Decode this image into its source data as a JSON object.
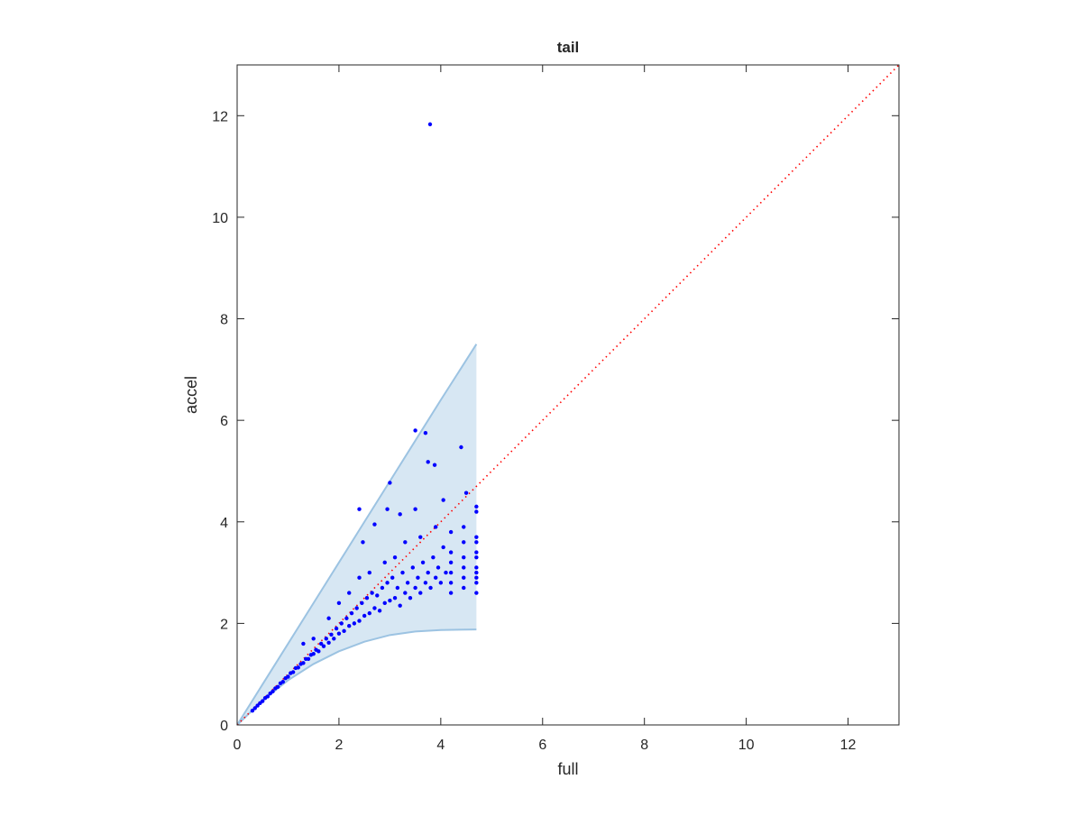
{
  "chart_data": {
    "type": "scatter",
    "title": "tail",
    "xlabel": "full",
    "ylabel": "accel",
    "xlim": [
      0,
      13
    ],
    "ylim": [
      0,
      13
    ],
    "xticks": [
      0,
      2,
      4,
      6,
      8,
      10,
      12
    ],
    "yticks": [
      0,
      2,
      4,
      6,
      8,
      10,
      12
    ],
    "band": {
      "color": "#9cc3e2",
      "x": [
        0,
        0.5,
        1,
        1.5,
        2,
        2.5,
        3,
        3.5,
        4,
        4.7
      ],
      "upper": [
        0,
        0.8,
        1.6,
        2.4,
        3.2,
        4.0,
        4.8,
        5.6,
        6.4,
        7.5
      ],
      "lower": [
        0,
        0.48,
        0.88,
        1.2,
        1.45,
        1.64,
        1.77,
        1.84,
        1.87,
        1.88
      ]
    },
    "reference_line": {
      "color": "#ff0000",
      "x": [
        0,
        13
      ],
      "y": [
        0,
        13
      ]
    },
    "points": {
      "color": "#0000ff",
      "x": [
        3.79,
        3.5,
        3.7,
        4.4,
        3.75,
        3.88,
        3.0,
        4.5,
        4.05,
        2.4,
        2.95,
        3.5,
        3.2,
        2.7,
        2.47,
        4.7,
        4.7,
        4.7,
        4.7,
        4.7,
        4.7,
        4.7,
        4.7,
        4.7,
        4.7,
        4.7,
        4.45,
        4.45,
        4.45,
        4.45,
        4.45,
        4.45,
        4.2,
        4.2,
        4.2,
        4.2,
        4.2,
        4.2,
        0.3,
        0.35,
        0.4,
        0.45,
        0.5,
        0.55,
        0.6,
        0.65,
        0.7,
        0.75,
        0.8,
        0.85,
        0.9,
        0.95,
        1.0,
        1.05,
        1.1,
        1.15,
        1.2,
        1.25,
        1.3,
        1.35,
        1.4,
        1.45,
        1.5,
        1.55,
        1.6,
        1.65,
        1.7,
        1.75,
        1.8,
        1.85,
        1.9,
        1.95,
        2.0,
        2.05,
        2.1,
        2.15,
        2.2,
        2.25,
        2.3,
        2.35,
        2.4,
        2.45,
        2.5,
        2.55,
        2.6,
        2.65,
        2.7,
        2.75,
        2.8,
        2.85,
        2.9,
        2.95,
        3.0,
        3.05,
        3.1,
        3.15,
        3.2,
        3.25,
        3.3,
        3.35,
        3.4,
        3.45,
        3.5,
        3.55,
        3.6,
        3.65,
        3.7,
        3.75,
        3.8,
        3.85,
        3.9,
        3.95,
        4.0,
        4.05,
        4.1,
        1.3,
        1.5,
        1.8,
        2.0,
        2.2,
        2.4,
        2.6,
        2.9,
        3.1,
        3.3,
        3.6,
        3.9
      ],
      "y": [
        11.83,
        5.8,
        5.75,
        5.47,
        5.18,
        5.12,
        4.77,
        4.57,
        4.43,
        4.25,
        4.25,
        4.25,
        4.15,
        3.95,
        3.6,
        4.3,
        4.2,
        3.7,
        3.6,
        3.4,
        3.3,
        3.1,
        3.0,
        2.9,
        2.8,
        2.6,
        3.9,
        3.6,
        3.3,
        3.1,
        2.9,
        2.7,
        3.8,
        3.4,
        3.2,
        3.0,
        2.8,
        2.6,
        0.28,
        0.33,
        0.38,
        0.43,
        0.47,
        0.53,
        0.56,
        0.62,
        0.66,
        0.72,
        0.75,
        0.82,
        0.85,
        0.92,
        0.95,
        1.02,
        1.04,
        1.12,
        1.13,
        1.2,
        1.22,
        1.3,
        1.3,
        1.38,
        1.4,
        1.48,
        1.45,
        1.6,
        1.55,
        1.7,
        1.62,
        1.78,
        1.7,
        1.9,
        1.8,
        2.0,
        1.85,
        2.1,
        1.95,
        2.2,
        2.0,
        2.3,
        2.05,
        2.4,
        2.15,
        2.5,
        2.2,
        2.6,
        2.3,
        2.55,
        2.25,
        2.7,
        2.4,
        2.8,
        2.45,
        2.9,
        2.5,
        2.7,
        2.35,
        3.0,
        2.6,
        2.8,
        2.5,
        3.1,
        2.7,
        2.9,
        2.6,
        3.2,
        2.8,
        3.0,
        2.7,
        3.3,
        2.9,
        3.1,
        2.8,
        3.5,
        3.0,
        1.6,
        1.7,
        2.1,
        2.4,
        2.6,
        2.9,
        3.0,
        3.2,
        3.3,
        3.6,
        3.7,
        3.9
      ]
    }
  }
}
